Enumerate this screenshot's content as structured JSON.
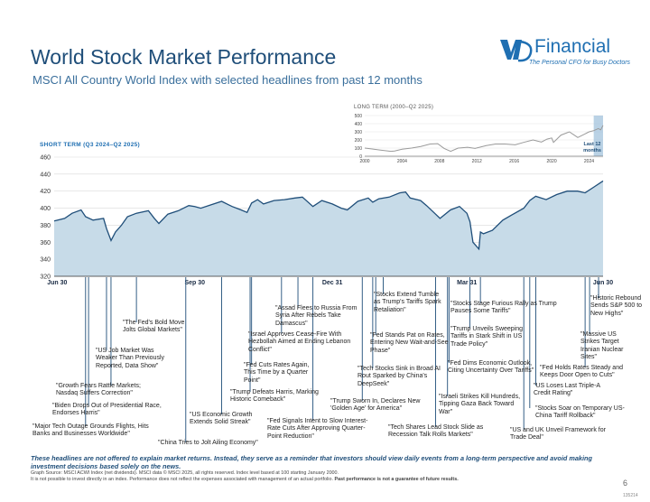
{
  "header": {
    "title": "World Stock Market Performance",
    "subtitle": "MSCI All Country World Index with selected headlines from past 12 months"
  },
  "logo": {
    "text": "Financial",
    "tagline": "The Personal CFO for Busy Doctors",
    "accent_color": "#1f6fb2"
  },
  "footer": {
    "disclaimer": "These headlines are not offered to explain market returns. Instead, they serve as a reminder that investors should view daily events from a long-term perspective and avoid making investment decisions based solely on the news.",
    "source_line1": "Graph Source: MSCI ACWI Index (net dividends). MSCI data © MSCI 2025, all rights reserved. Index level based at 100 starting January 2000.",
    "source_line2_prefix": "It is not possible to invest directly in an index. Performance does not reflect the expenses associated with management of an actual portfolio. ",
    "source_line2_bold": "Past performance is not a guarantee of future results.",
    "page_number": "6",
    "code": "135214"
  },
  "colors": {
    "title": "#1f4e79",
    "area_fill": "#c7dbe8",
    "line": "#1f4e79",
    "long_line": "#9a9a9a",
    "long_highlight": "#a9c7de"
  },
  "chart_data": [
    {
      "type": "area",
      "label": "SHORT TERM (Q3 2024–Q2 2025)",
      "ylim": [
        320,
        460
      ],
      "yticks": [
        320,
        340,
        360,
        380,
        400,
        420,
        440,
        460
      ],
      "xlim": [
        "2024-06-28",
        "2025-06-30"
      ],
      "xticks": [
        {
          "label": "Jun 30",
          "date": "2024-06-30"
        },
        {
          "label": "Sep 30",
          "date": "2024-09-30"
        },
        {
          "label": "Dec 31",
          "date": "2024-12-31"
        },
        {
          "label": "Mar 31",
          "date": "2025-03-31"
        },
        {
          "label": "Jun 30",
          "date": "2025-06-30"
        }
      ],
      "grid": "horizontal",
      "series": [
        {
          "x": [
            "2024-06-28",
            "2024-07-05",
            "2024-07-10",
            "2024-07-16",
            "2024-07-19",
            "2024-07-24",
            "2024-07-31",
            "2024-08-02",
            "2024-08-05",
            "2024-08-08",
            "2024-08-12",
            "2024-08-16",
            "2024-08-22",
            "2024-08-30",
            "2024-09-03",
            "2024-09-06",
            "2024-09-12",
            "2024-09-19",
            "2024-09-26",
            "2024-09-30",
            "2024-10-04",
            "2024-10-11",
            "2024-10-18",
            "2024-10-25",
            "2024-10-31",
            "2024-11-04",
            "2024-11-07",
            "2024-11-11",
            "2024-11-15",
            "2024-11-22",
            "2024-11-29",
            "2024-12-06",
            "2024-12-11",
            "2024-12-18",
            "2024-12-24",
            "2024-12-31",
            "2025-01-06",
            "2025-01-10",
            "2025-01-17",
            "2025-01-24",
            "2025-01-27",
            "2025-01-31",
            "2025-02-07",
            "2025-02-14",
            "2025-02-18",
            "2025-02-21",
            "2025-02-28",
            "2025-03-04",
            "2025-03-10",
            "2025-03-13",
            "2025-03-20",
            "2025-03-26",
            "2025-03-31",
            "2025-04-02",
            "2025-04-04",
            "2025-04-08",
            "2025-04-09",
            "2025-04-11",
            "2025-04-17",
            "2025-04-24",
            "2025-04-30",
            "2025-05-08",
            "2025-05-12",
            "2025-05-16",
            "2025-05-23",
            "2025-05-30",
            "2025-06-06",
            "2025-06-13",
            "2025-06-18",
            "2025-06-24",
            "2025-06-30"
          ],
          "y": [
            385,
            388,
            394,
            398,
            390,
            386,
            388,
            376,
            362,
            372,
            380,
            390,
            394,
            397,
            388,
            382,
            393,
            397,
            403,
            402,
            400,
            404,
            408,
            402,
            398,
            395,
            406,
            410,
            405,
            409,
            410,
            412,
            413,
            402,
            409,
            405,
            400,
            398,
            408,
            412,
            407,
            411,
            413,
            418,
            419,
            412,
            409,
            403,
            393,
            388,
            398,
            402,
            394,
            384,
            360,
            352,
            372,
            370,
            374,
            386,
            392,
            400,
            409,
            414,
            410,
            416,
            420,
            420,
            418,
            425,
            432
          ]
        }
      ]
    },
    {
      "type": "line",
      "label": "LONG TERM (2000–Q2 2025)",
      "ylim": [
        0,
        500
      ],
      "yticks": [
        0,
        100,
        200,
        300,
        400,
        500
      ],
      "xlim": [
        2000,
        2025.5
      ],
      "xticks": [
        2000,
        2004,
        2008,
        2012,
        2016,
        2020,
        2024
      ],
      "annotation": "Last 12 months",
      "highlight_range": [
        2024.5,
        2025.5
      ],
      "grid": "horizontal",
      "series": [
        {
          "x": [
            2000,
            2000.7,
            2001.7,
            2002.8,
            2003.2,
            2004,
            2005,
            2006,
            2007,
            2007.8,
            2008.5,
            2009.2,
            2010,
            2011,
            2011.8,
            2013,
            2014,
            2015,
            2016.1,
            2017,
            2018,
            2018.9,
            2019.5,
            2020,
            2020.2,
            2021,
            2021.9,
            2022.8,
            2023.5,
            2024,
            2024.5,
            2025,
            2025.25,
            2025.5
          ],
          "y": [
            100,
            90,
            75,
            60,
            65,
            85,
            100,
            120,
            150,
            155,
            95,
            60,
            100,
            110,
            95,
            130,
            150,
            150,
            140,
            170,
            200,
            175,
            210,
            225,
            170,
            260,
            300,
            230,
            270,
            300,
            315,
            340,
            325,
            380
          ]
        }
      ]
    }
  ],
  "headlines": [
    {
      "date": "2024-07-19",
      "text": "\"Major Tech Outage Grounds Flights, Hits Banks and Businesses Worldwide\""
    },
    {
      "date": "2024-07-21",
      "text": "\"Biden Drops Out of Presidential Race, Endorses Harris\""
    },
    {
      "date": "2024-08-05",
      "text": "\"Growth Fears Rattle Markets; Nasdaq Suffers Correction\""
    },
    {
      "date": "2024-08-02",
      "text": "\"US Job Market Was Weaker Than Previously Reported, Data Show\""
    },
    {
      "date": "2024-08-22",
      "text": "\"The Fed's Bold Move Jolts Global Markets\""
    },
    {
      "date": "2024-09-24",
      "text": "\"China Tries to Jolt Ailing Economy\""
    },
    {
      "date": "2024-10-18",
      "text": "\"US Economic Growth Extends Solid Streak\""
    },
    {
      "date": "2024-11-06",
      "text": "\"Trump Defeats Harris, Marking Historic Comeback\""
    },
    {
      "date": "2024-11-07",
      "text": "\"Fed Cuts Rates Again, This Time by a Quarter Point\""
    },
    {
      "date": "2024-11-27",
      "text": "\"Israel Approves Cease-Fire With Hezbollah Aimed at Ending Lebanon Conflict\""
    },
    {
      "date": "2024-12-18",
      "text": "\"Fed Signals Intent to Slow Interest-Rate Cuts After Approving Quarter-Point Reduction\""
    },
    {
      "date": "2024-12-08",
      "text": "\"Assad Flees to Russia From Syria After Rebels Take Damascus\""
    },
    {
      "date": "2025-01-20",
      "text": "\"Trump Sworn In, Declares New 'Golden Age' for America\""
    },
    {
      "date": "2025-01-27",
      "text": "\"Tech Stocks Sink in Broad AI Rout Sparked by China's DeepSeek\""
    },
    {
      "date": "2025-01-29",
      "text": "\"Fed Stands Pat on Rates, Entering New Wait-and-See Phase\""
    },
    {
      "date": "2025-02-03",
      "text": "\"Stocks Extend Tumble as Trump's Tariffs Spark Retaliation\""
    },
    {
      "date": "2025-03-10",
      "text": "\"Tech Shares Lead Stock Slide as Recession Talk Rolls Markets\""
    },
    {
      "date": "2025-03-18",
      "text": "\"Israeli Strikes Kill Hundreds, Tipping Gaza Back Toward War\""
    },
    {
      "date": "2025-03-19",
      "text": "\"Fed Dims Economic Outlook, Citing Uncertainty Over Tariffs\""
    },
    {
      "date": "2025-04-02",
      "text": "\"Trump Unveils Sweeping Tariffs in Stark Shift in US Trade Policy\""
    },
    {
      "date": "2025-04-09",
      "text": "\"Stocks Stage Furious Rally as Trump Pauses Some Tariffs\""
    },
    {
      "date": "2025-05-08",
      "text": "\"US and UK Unveil Framework for Trade Deal\""
    },
    {
      "date": "2025-05-12",
      "text": "\"Stocks Soar on Temporary US-China Tariff Rollback\""
    },
    {
      "date": "2025-05-16",
      "text": "\"US Loses Last Triple-A Credit Rating\""
    },
    {
      "date": "2025-06-18",
      "text": "\"Fed Holds Rates Steady and Keeps Door Open to Cuts\""
    },
    {
      "date": "2025-06-21",
      "text": "\"Massive US Strikes Target Iranian Nuclear Sites\""
    },
    {
      "date": "2025-06-27",
      "text": "\"Historic Rebound Sends S&P 500 to New Highs\""
    }
  ]
}
